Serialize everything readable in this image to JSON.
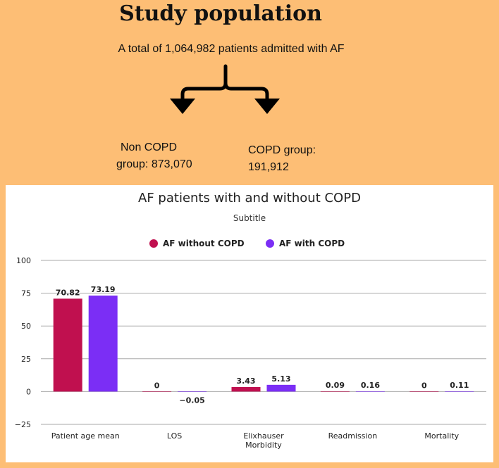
{
  "header": {
    "title": "Study population",
    "total_text": "A total of 1,064,982 patients admitted with AF"
  },
  "groups": {
    "non_copd_line1": "Non COPD",
    "non_copd_line2": "group: 873,070",
    "copd_line1": "COPD group:",
    "copd_line2": "191,912"
  },
  "colors": {
    "background": "#FDBE75",
    "series1": "#C0104F",
    "series2": "#7B2EF5",
    "grid": "#AAAAAA"
  },
  "chart_data": {
    "type": "bar",
    "title": "AF patients with and without COPD",
    "subtitle": "Subtitle",
    "categories": [
      [
        "Patient age mean"
      ],
      [
        "LOS"
      ],
      [
        "Elixhauser",
        "Morbidity"
      ],
      [
        "Readmission"
      ],
      [
        "Mortality"
      ]
    ],
    "series": [
      {
        "name": "AF without COPD",
        "values": [
          70.82,
          0,
          3.43,
          0.09,
          0
        ],
        "labels": [
          "70.82",
          "0",
          "3.43",
          "0.09",
          "0"
        ]
      },
      {
        "name": "AF with COPD",
        "values": [
          73.19,
          -0.05,
          5.13,
          0.16,
          0.11
        ],
        "labels": [
          "73.19",
          "−0.05",
          "5.13",
          "0.16",
          "0.11"
        ]
      }
    ],
    "yticks": [
      100,
      75,
      50,
      25,
      0,
      -25
    ],
    "ytick_labels": [
      "100",
      "75",
      "50",
      "25",
      "0",
      "−25"
    ],
    "ylim": [
      -25,
      100
    ],
    "grid": true,
    "legend_position": "top-center"
  }
}
